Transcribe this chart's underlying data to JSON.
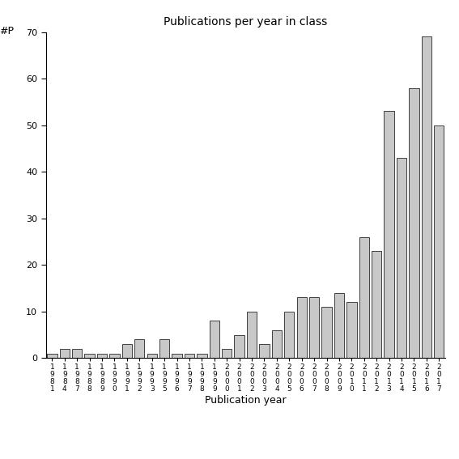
{
  "years": [
    "1981",
    "1984",
    "1987",
    "1988",
    "1989",
    "1990",
    "1991",
    "1992",
    "1993",
    "1995",
    "1996",
    "1997",
    "1998",
    "1999",
    "2000",
    "2001",
    "2002",
    "2003",
    "2004",
    "2005",
    "2006",
    "2007",
    "2008",
    "2009",
    "2010",
    "2011",
    "2012",
    "2013",
    "2014",
    "2015",
    "2016",
    "2017"
  ],
  "values": [
    1,
    2,
    2,
    1,
    1,
    1,
    3,
    4,
    1,
    4,
    1,
    1,
    1,
    8,
    2,
    5,
    10,
    3,
    6,
    10,
    13,
    13,
    11,
    14,
    12,
    26,
    23,
    53,
    43,
    58,
    69,
    50
  ],
  "title": "Publications per year in class",
  "xlabel": "Publication year",
  "ylabel": "#P",
  "ylim_max": 70,
  "yticks": [
    0,
    10,
    20,
    30,
    40,
    50,
    60,
    70
  ],
  "bar_color": "#c8c8c8",
  "bar_edgecolor": "#000000",
  "fig_width": 5.67,
  "fig_height": 5.67,
  "dpi": 100
}
